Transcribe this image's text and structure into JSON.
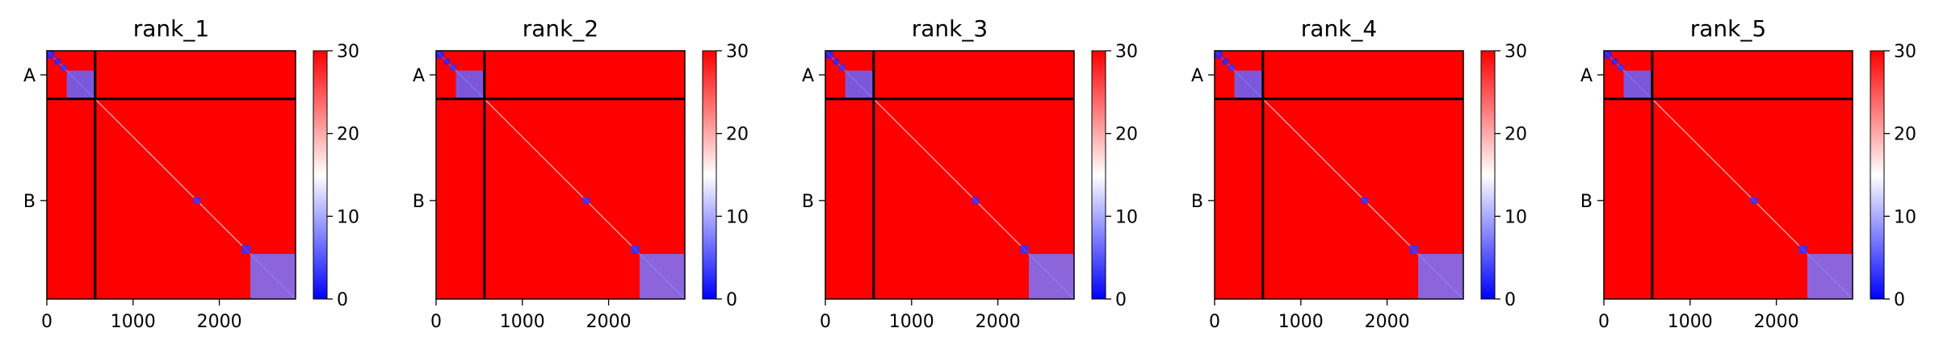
{
  "chart_data": {
    "type": "heatmap",
    "colormap": {
      "name": "bwr",
      "low_color": "#0000ff",
      "mid_color": "#ffffff",
      "high_color": "#ff0000",
      "vmin": 0,
      "vmax": 30,
      "ticks": [
        "0",
        "10",
        "20",
        "30"
      ]
    },
    "x_axis": {
      "range": [
        0,
        2884
      ],
      "ticks": [
        0,
        1000,
        2000
      ],
      "tick_labels": [
        "0",
        "1000",
        "2000"
      ]
    },
    "y_axis": {
      "range": [
        0,
        2884
      ],
      "inverted": true,
      "tick_labels": [
        "A",
        "B"
      ],
      "tick_values": [
        280,
        1740
      ]
    },
    "chain_boundary": 560,
    "total_length": 2884,
    "chains": [
      {
        "name": "A",
        "start": 0,
        "end": 560
      },
      {
        "name": "B",
        "start": 560,
        "end": 2884
      }
    ],
    "low_error_blocks": [
      {
        "start": 0,
        "end": 90,
        "value": 2
      },
      {
        "start": 90,
        "end": 160,
        "value": 2
      },
      {
        "start": 160,
        "end": 230,
        "value": 3
      },
      {
        "start": 230,
        "end": 560,
        "value": 6
      },
      {
        "start": 1700,
        "end": 1780,
        "value": 3
      },
      {
        "start": 2260,
        "end": 2360,
        "value": 3
      },
      {
        "start": 2360,
        "end": 2884,
        "value": 7
      }
    ],
    "background_value": 30,
    "panels": [
      {
        "title": "rank_1"
      },
      {
        "title": "rank_2"
      },
      {
        "title": "rank_3"
      },
      {
        "title": "rank_4"
      },
      {
        "title": "rank_5"
      }
    ]
  }
}
